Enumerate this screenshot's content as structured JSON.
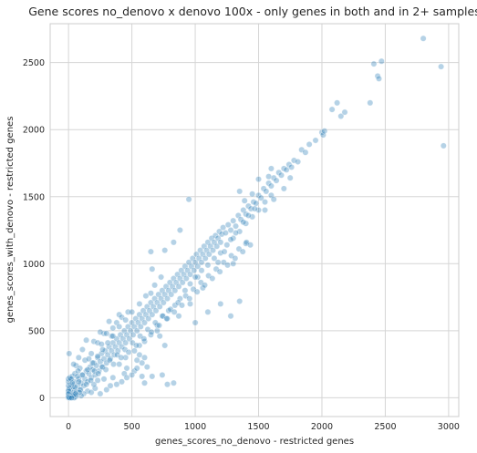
{
  "chart_data": {
    "type": "scatter",
    "title": "Gene scores no_denovo x denovo 100x - only genes in both and in 2+ samples",
    "xlabel": "genes_scores_no_denovo - restricted genes",
    "ylabel": "genes_scores_with_denovo - restricted genes",
    "xlim": [
      -145,
      3080
    ],
    "ylim": [
      -140,
      2790
    ],
    "xticks": [
      0,
      500,
      1000,
      1500,
      2000,
      2500,
      3000
    ],
    "yticks": [
      0,
      500,
      1000,
      1500,
      2000,
      2500
    ],
    "xtick_labels": [
      "0",
      "500",
      "1000",
      "1500",
      "2000",
      "2500",
      "3000"
    ],
    "ytick_labels": [
      "0",
      "500",
      "1000",
      "1500",
      "2000",
      "2500"
    ],
    "grid": true,
    "legend": "none",
    "color": "#1f77b4",
    "points": [
      [
        0,
        0
      ],
      [
        5,
        8
      ],
      [
        10,
        3
      ],
      [
        3,
        20
      ],
      [
        15,
        10
      ],
      [
        8,
        30
      ],
      [
        0,
        15
      ],
      [
        20,
        25
      ],
      [
        2,
        5
      ],
      [
        12,
        40
      ],
      [
        25,
        12
      ],
      [
        0,
        45
      ],
      [
        30,
        35
      ],
      [
        18,
        60
      ],
      [
        40,
        28
      ],
      [
        6,
        70
      ],
      [
        50,
        55
      ],
      [
        35,
        80
      ],
      [
        60,
        45
      ],
      [
        22,
        95
      ],
      [
        0,
        55
      ],
      [
        0,
        90
      ],
      [
        0,
        120
      ],
      [
        0,
        140
      ],
      [
        5,
        330
      ],
      [
        10,
        150
      ],
      [
        30,
        160
      ],
      [
        45,
        120
      ],
      [
        70,
        90
      ],
      [
        80,
        140
      ],
      [
        90,
        60
      ],
      [
        100,
        110
      ],
      [
        110,
        170
      ],
      [
        120,
        90
      ],
      [
        130,
        140
      ],
      [
        140,
        200
      ],
      [
        150,
        120
      ],
      [
        160,
        180
      ],
      [
        170,
        230
      ],
      [
        180,
        150
      ],
      [
        190,
        210
      ],
      [
        200,
        260
      ],
      [
        210,
        170
      ],
      [
        220,
        240
      ],
      [
        230,
        300
      ],
      [
        240,
        200
      ],
      [
        250,
        270
      ],
      [
        260,
        330
      ],
      [
        270,
        230
      ],
      [
        280,
        290
      ],
      [
        290,
        350
      ],
      [
        300,
        260
      ],
      [
        310,
        320
      ],
      [
        320,
        380
      ],
      [
        330,
        290
      ],
      [
        340,
        350
      ],
      [
        350,
        410
      ],
      [
        360,
        320
      ],
      [
        370,
        380
      ],
      [
        380,
        440
      ],
      [
        390,
        350
      ],
      [
        400,
        410
      ],
      [
        410,
        470
      ],
      [
        420,
        380
      ],
      [
        430,
        440
      ],
      [
        440,
        500
      ],
      [
        450,
        410
      ],
      [
        460,
        470
      ],
      [
        470,
        530
      ],
      [
        480,
        440
      ],
      [
        490,
        500
      ],
      [
        500,
        560
      ],
      [
        510,
        470
      ],
      [
        520,
        530
      ],
      [
        530,
        590
      ],
      [
        540,
        500
      ],
      [
        550,
        560
      ],
      [
        560,
        620
      ],
      [
        570,
        530
      ],
      [
        580,
        590
      ],
      [
        590,
        650
      ],
      [
        600,
        560
      ],
      [
        610,
        620
      ],
      [
        620,
        680
      ],
      [
        630,
        590
      ],
      [
        640,
        650
      ],
      [
        650,
        710
      ],
      [
        660,
        620
      ],
      [
        670,
        680
      ],
      [
        680,
        740
      ],
      [
        690,
        650
      ],
      [
        700,
        710
      ],
      [
        710,
        770
      ],
      [
        720,
        680
      ],
      [
        730,
        740
      ],
      [
        740,
        800
      ],
      [
        750,
        710
      ],
      [
        760,
        770
      ],
      [
        770,
        830
      ],
      [
        780,
        740
      ],
      [
        790,
        800
      ],
      [
        800,
        860
      ],
      [
        810,
        770
      ],
      [
        820,
        830
      ],
      [
        830,
        890
      ],
      [
        840,
        800
      ],
      [
        850,
        860
      ],
      [
        860,
        920
      ],
      [
        870,
        830
      ],
      [
        880,
        890
      ],
      [
        890,
        950
      ],
      [
        900,
        860
      ],
      [
        910,
        920
      ],
      [
        920,
        980
      ],
      [
        930,
        890
      ],
      [
        940,
        950
      ],
      [
        950,
        1010
      ],
      [
        960,
        920
      ],
      [
        970,
        980
      ],
      [
        980,
        1040
      ],
      [
        990,
        950
      ],
      [
        1000,
        1010
      ],
      [
        1010,
        1070
      ],
      [
        1020,
        980
      ],
      [
        1030,
        1040
      ],
      [
        1040,
        1100
      ],
      [
        1050,
        1010
      ],
      [
        1060,
        1070
      ],
      [
        1070,
        1130
      ],
      [
        1080,
        1040
      ],
      [
        1090,
        1100
      ],
      [
        1100,
        1160
      ],
      [
        1110,
        1070
      ],
      [
        1120,
        1130
      ],
      [
        1130,
        1190
      ],
      [
        1140,
        1100
      ],
      [
        1150,
        1160
      ],
      [
        1160,
        1210
      ],
      [
        1170,
        1130
      ],
      [
        1180,
        1190
      ],
      [
        1190,
        1240
      ],
      [
        1200,
        1160
      ],
      [
        1210,
        1220
      ],
      [
        1220,
        1270
      ],
      [
        1240,
        1230
      ],
      [
        1260,
        1290
      ],
      [
        1280,
        1250
      ],
      [
        1300,
        1320
      ],
      [
        1320,
        1280
      ],
      [
        1340,
        1360
      ],
      [
        1360,
        1330
      ],
      [
        1380,
        1400
      ],
      [
        1400,
        1370
      ],
      [
        1420,
        1430
      ],
      [
        1440,
        1410
      ],
      [
        1460,
        1460
      ],
      [
        1480,
        1450
      ],
      [
        1500,
        1510
      ],
      [
        1520,
        1490
      ],
      [
        1540,
        1560
      ],
      [
        1560,
        1540
      ],
      [
        1580,
        1600
      ],
      [
        1600,
        1580
      ],
      [
        1620,
        1640
      ],
      [
        1640,
        1620
      ],
      [
        1660,
        1680
      ],
      [
        1680,
        1660
      ],
      [
        1700,
        1710
      ],
      [
        1720,
        1700
      ],
      [
        1740,
        1740
      ],
      [
        1760,
        1720
      ],
      [
        1780,
        1770
      ],
      [
        1810,
        1760
      ],
      [
        1840,
        1850
      ],
      [
        1870,
        1830
      ],
      [
        1900,
        1890
      ],
      [
        1950,
        1920
      ],
      [
        2000,
        1980
      ],
      [
        2010,
        1960
      ],
      [
        2020,
        1990
      ],
      [
        2080,
        2150
      ],
      [
        2120,
        2200
      ],
      [
        2150,
        2100
      ],
      [
        2180,
        2130
      ],
      [
        2380,
        2200
      ],
      [
        2410,
        2490
      ],
      [
        2440,
        2400
      ],
      [
        2450,
        2380
      ],
      [
        2470,
        2510
      ],
      [
        2800,
        2680
      ],
      [
        2940,
        2470
      ],
      [
        2960,
        1880
      ],
      [
        1580,
        1650
      ],
      [
        1500,
        1630
      ],
      [
        1600,
        1710
      ],
      [
        1450,
        1520
      ],
      [
        1350,
        1540
      ],
      [
        1390,
        1470
      ],
      [
        950,
        1480
      ],
      [
        760,
        1100
      ],
      [
        650,
        1090
      ],
      [
        660,
        960
      ],
      [
        650,
        780
      ],
      [
        830,
        1160
      ],
      [
        880,
        1250
      ],
      [
        1000,
        560
      ],
      [
        1100,
        640
      ],
      [
        1200,
        700
      ],
      [
        1280,
        610
      ],
      [
        1350,
        720
      ],
      [
        1020,
        900
      ],
      [
        870,
        610
      ],
      [
        960,
        700
      ],
      [
        1060,
        820
      ],
      [
        780,
        590
      ],
      [
        700,
        500
      ],
      [
        560,
        320
      ],
      [
        720,
        460
      ],
      [
        600,
        300
      ],
      [
        760,
        390
      ],
      [
        620,
        230
      ],
      [
        660,
        160
      ],
      [
        740,
        170
      ],
      [
        780,
        100
      ],
      [
        830,
        110
      ],
      [
        580,
        260
      ],
      [
        540,
        280
      ],
      [
        460,
        220
      ],
      [
        440,
        180
      ],
      [
        520,
        200
      ],
      [
        580,
        160
      ],
      [
        600,
        110
      ],
      [
        320,
        570
      ],
      [
        400,
        620
      ],
      [
        470,
        640
      ],
      [
        280,
        480
      ],
      [
        350,
        520
      ],
      [
        200,
        420
      ],
      [
        250,
        490
      ],
      [
        140,
        430
      ],
      [
        110,
        360
      ],
      [
        80,
        300
      ],
      [
        130,
        280
      ],
      [
        60,
        240
      ],
      [
        180,
        330
      ],
      [
        230,
        410
      ],
      [
        300,
        480
      ],
      [
        380,
        560
      ],
      [
        420,
        600
      ],
      [
        340,
        460
      ],
      [
        260,
        400
      ],
      [
        160,
        290
      ],
      [
        90,
        220
      ],
      [
        50,
        180
      ],
      [
        40,
        250
      ],
      [
        75,
        200
      ],
      [
        150,
        50
      ],
      [
        180,
        40
      ],
      [
        210,
        70
      ],
      [
        250,
        30
      ],
      [
        300,
        60
      ],
      [
        330,
        90
      ],
      [
        380,
        100
      ],
      [
        420,
        120
      ],
      [
        460,
        150
      ],
      [
        500,
        170
      ],
      [
        540,
        220
      ],
      [
        350,
        150
      ],
      [
        280,
        140
      ],
      [
        200,
        100
      ],
      [
        120,
        30
      ],
      [
        100,
        15
      ],
      [
        60,
        10
      ],
      [
        40,
        5
      ],
      [
        230,
        130
      ],
      [
        400,
        250
      ],
      [
        450,
        300
      ],
      [
        520,
        350
      ],
      [
        560,
        390
      ],
      [
        600,
        420
      ],
      [
        650,
        470
      ],
      [
        700,
        540
      ],
      [
        740,
        610
      ],
      [
        790,
        650
      ],
      [
        840,
        690
      ],
      [
        880,
        740
      ],
      [
        920,
        800
      ],
      [
        960,
        850
      ],
      [
        1000,
        900
      ],
      [
        1050,
        950
      ],
      [
        1100,
        990
      ],
      [
        1150,
        1040
      ],
      [
        1200,
        1080
      ],
      [
        1250,
        1140
      ],
      [
        1300,
        1190
      ],
      [
        1350,
        1240
      ],
      [
        1400,
        1300
      ],
      [
        1450,
        1350
      ],
      [
        1500,
        1400
      ],
      [
        1550,
        1460
      ],
      [
        1600,
        1510
      ],
      [
        1180,
        1010
      ],
      [
        1230,
        1090
      ],
      [
        1280,
        1180
      ],
      [
        1320,
        1230
      ],
      [
        1380,
        1310
      ],
      [
        1420,
        1360
      ],
      [
        1470,
        1410
      ],
      [
        1300,
        1000
      ],
      [
        1400,
        1150
      ],
      [
        1550,
        1400
      ],
      [
        1620,
        1480
      ],
      [
        1700,
        1560
      ],
      [
        1750,
        1640
      ],
      [
        560,
        700
      ],
      [
        610,
        760
      ],
      [
        680,
        840
      ],
      [
        730,
        900
      ],
      [
        500,
        640
      ],
      [
        450,
        580
      ],
      [
        400,
        530
      ],
      [
        350,
        460
      ],
      [
        310,
        410
      ],
      [
        270,
        360
      ],
      [
        230,
        310
      ],
      [
        190,
        260
      ],
      [
        150,
        210
      ],
      [
        110,
        170
      ],
      [
        80,
        120
      ],
      [
        50,
        80
      ],
      [
        30,
        110
      ],
      [
        20,
        140
      ],
      [
        70,
        160
      ],
      [
        95,
        60
      ],
      [
        140,
        100
      ],
      [
        175,
        130
      ],
      [
        205,
        200
      ],
      [
        235,
        180
      ],
      [
        265,
        230
      ],
      [
        295,
        210
      ],
      [
        325,
        280
      ],
      [
        355,
        250
      ],
      [
        385,
        320
      ],
      [
        415,
        300
      ],
      [
        445,
        360
      ],
      [
        475,
        340
      ],
      [
        505,
        410
      ],
      [
        535,
        390
      ],
      [
        565,
        460
      ],
      [
        595,
        440
      ],
      [
        625,
        510
      ],
      [
        655,
        490
      ],
      [
        685,
        560
      ],
      [
        715,
        540
      ],
      [
        745,
        610
      ],
      [
        775,
        590
      ],
      [
        805,
        660
      ],
      [
        835,
        640
      ],
      [
        865,
        710
      ],
      [
        895,
        690
      ],
      [
        925,
        760
      ],
      [
        955,
        740
      ],
      [
        985,
        810
      ],
      [
        1015,
        790
      ],
      [
        1045,
        860
      ],
      [
        1075,
        840
      ],
      [
        1105,
        910
      ],
      [
        1135,
        890
      ],
      [
        1165,
        960
      ],
      [
        1195,
        940
      ],
      [
        1225,
        1010
      ],
      [
        1255,
        990
      ],
      [
        1285,
        1060
      ],
      [
        1315,
        1040
      ],
      [
        1345,
        1110
      ],
      [
        1375,
        1090
      ],
      [
        1405,
        1160
      ],
      [
        1435,
        1140
      ],
      [
        15,
        0
      ],
      [
        45,
        0
      ],
      [
        60,
        20
      ],
      [
        85,
        40
      ],
      [
        35,
        15
      ],
      [
        55,
        30
      ],
      [
        0,
        30
      ],
      [
        0,
        5
      ],
      [
        8,
        0
      ],
      [
        25,
        0
      ]
    ]
  }
}
